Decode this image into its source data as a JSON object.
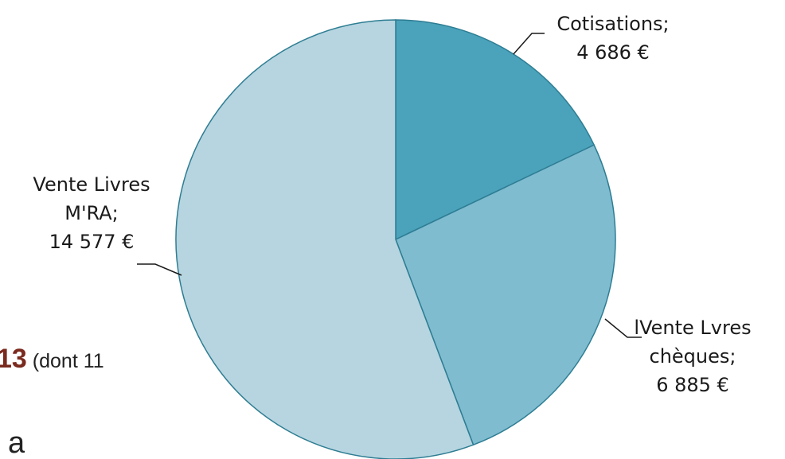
{
  "chart_data": {
    "type": "pie",
    "title": "",
    "slices": [
      {
        "label_lines": [
          "Cotisations;",
          "4 686 €"
        ],
        "name": "Cotisations",
        "value": 4686,
        "color": "#4aa3bb"
      },
      {
        "label_lines": [
          "lVente Lvres",
          "chèques;",
          "6 885 €"
        ],
        "name": "lVente Lvres chèques",
        "value": 6885,
        "color": "#7fbcd0"
      },
      {
        "label_lines": [
          "Vente Livres",
          "M'RA;",
          "14 577 €"
        ],
        "name": "Vente Livres M'RA",
        "value": 14577,
        "color": "#b6d5e0"
      }
    ],
    "stroke_color": "#2e7d93",
    "leader_color": "#1a1a1a"
  },
  "background_fragments": {
    "partial_number": "13",
    "partial_text": "(dont  11",
    "partial_letter": "a"
  }
}
